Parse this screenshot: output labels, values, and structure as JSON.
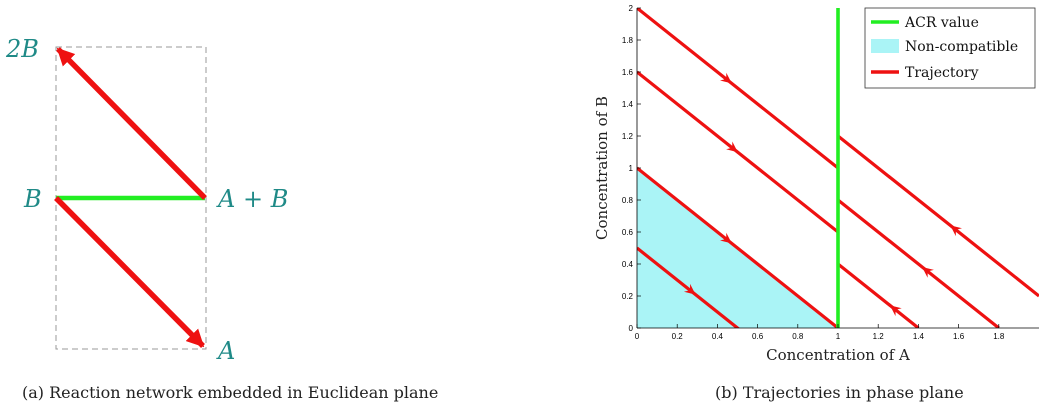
{
  "captions": {
    "a": "(a) Reaction network embedded in Euclidean plane",
    "b": "(b) Trajectories in phase plane"
  },
  "network": {
    "nodes": [
      {
        "id": "2B",
        "text": "2B"
      },
      {
        "id": "B",
        "text": "B"
      },
      {
        "id": "A+B",
        "text": "A + B"
      },
      {
        "id": "A",
        "text": "A"
      }
    ],
    "colors": {
      "reaction": "#ee1111",
      "acr_edge": "#22ee22",
      "label": "#1f8a87",
      "box": "#999999"
    }
  },
  "chart_data": {
    "type": "line",
    "title": "",
    "xlabel": "Concentration of A",
    "ylabel": "Concentration of B",
    "xlim": [
      0,
      2
    ],
    "ylim": [
      0,
      2
    ],
    "xticks": [
      0,
      0.2,
      0.4,
      0.6,
      0.8,
      1,
      1.2,
      1.4,
      1.6,
      1.8
    ],
    "yticks": [
      0,
      0.2,
      0.4,
      0.6,
      0.8,
      1,
      1.2,
      1.4,
      1.6,
      1.8,
      2
    ],
    "legend_position": "top-right",
    "legend": [
      {
        "name": "ACR value",
        "kind": "line",
        "color": "#22ee22"
      },
      {
        "name": "Non-compatible",
        "kind": "area",
        "color": "#aaf4f6"
      },
      {
        "name": "Trajectory",
        "kind": "line",
        "color": "#ee1111"
      }
    ],
    "acr_value": {
      "x": 1,
      "y_range": [
        0,
        2
      ]
    },
    "non_compatible_region": [
      [
        0,
        0
      ],
      [
        1,
        0
      ],
      [
        0,
        1
      ]
    ],
    "series": [
      {
        "x": [
          0,
          1
        ],
        "y": [
          0.5,
          -0.5
        ],
        "arrows": [
          {
            "x": 0.27,
            "dir": "forward"
          }
        ]
      },
      {
        "x": [
          0,
          1
        ],
        "y": [
          1,
          0
        ],
        "arrows": [
          {
            "x": 0.45,
            "dir": "forward"
          }
        ]
      },
      {
        "x": [
          0,
          1
        ],
        "y": [
          1.6,
          0.6
        ],
        "arrows": [
          {
            "x": 0.48,
            "dir": "forward"
          }
        ]
      },
      {
        "x": [
          0,
          1
        ],
        "y": [
          2,
          1
        ],
        "arrows": [
          {
            "x": 0.45,
            "dir": "forward"
          }
        ]
      },
      {
        "x": [
          1,
          1.4
        ],
        "y": [
          0.4,
          0
        ],
        "arrows": [
          {
            "x": 1.28,
            "dir": "backward"
          }
        ]
      },
      {
        "x": [
          1,
          1.8
        ],
        "y": [
          0.8,
          0
        ],
        "arrows": [
          {
            "x": 1.44,
            "dir": "backward"
          }
        ]
      },
      {
        "x": [
          1,
          2
        ],
        "y": [
          1.2,
          0.2
        ],
        "arrows": [
          {
            "x": 1.58,
            "dir": "backward"
          }
        ]
      }
    ]
  }
}
